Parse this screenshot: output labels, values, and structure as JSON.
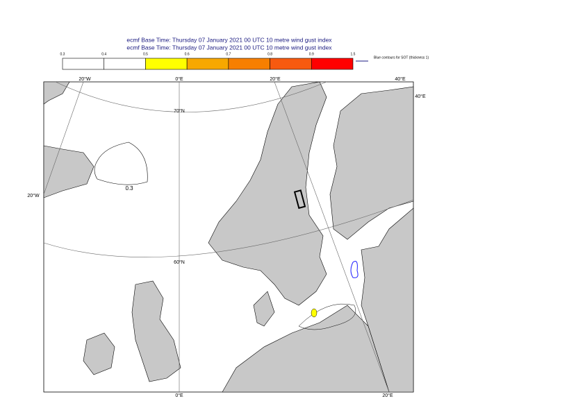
{
  "title": [
    "ecmf Base Time: Thursday 07 January 2021 00 UTC 10 metre wind gust index",
    "ecmf Base Time: Thursday 07 January 2021 00 UTC 10 metre wind gust index"
  ],
  "legend": {
    "ticks": [
      0.3,
      0.4,
      0.5,
      0.6,
      0.7,
      0.8,
      0.9,
      1.5
    ],
    "colors": [
      "#ffffff",
      "#ffffff",
      "#ffff00",
      "#f7a800",
      "#f77f00",
      "#f75a10",
      "#ff0000"
    ],
    "note": "Blue contours for SOT (thickness 1)"
  },
  "graticule_labels": [
    "20°W",
    "0°E",
    "20°E",
    "40°E",
    "40°E",
    "70°N",
    "20°W",
    "60°N",
    "0°E",
    "20°E"
  ],
  "contour_label": "0.3"
}
